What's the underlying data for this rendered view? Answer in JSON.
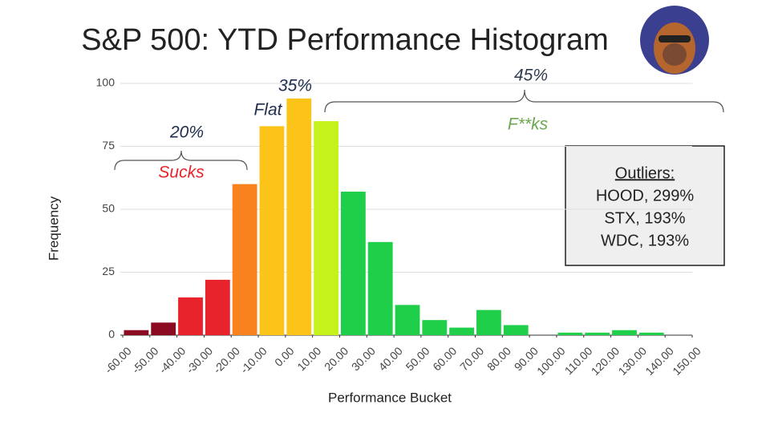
{
  "chart_data": {
    "type": "histogram",
    "title": "S&P 500: YTD Performance Histogram",
    "x_label": "Performance Bucket",
    "y_label": "Frequency",
    "bins": [
      -60,
      -50,
      -40,
      -30,
      -20,
      -10,
      0,
      10,
      20,
      30,
      40,
      50,
      60,
      70,
      80,
      90,
      100,
      110,
      120,
      130,
      140,
      150
    ],
    "values": [
      2,
      5,
      15,
      22,
      60,
      83,
      94,
      85,
      57,
      37,
      12,
      6,
      3,
      10,
      4,
      0,
      1,
      1,
      2,
      1,
      0
    ],
    "colors": [
      "#8b0a22",
      "#8b0a22",
      "#e8232b",
      "#e8232b",
      "#f7821e",
      "#fcc419",
      "#fcc419",
      "#c6f21b",
      "#1fcf4a",
      "#1fcf4a",
      "#1fcf4a",
      "#1fcf4a",
      "#1fcf4a",
      "#1fcf4a",
      "#1fcf4a",
      "#1fcf4a",
      "#1fcf4a",
      "#1fcf4a",
      "#1fcf4a",
      "#1fcf4a",
      "#1fcf4a"
    ],
    "xlim": [
      -60,
      150
    ],
    "xticks": [
      {
        "value": -60,
        "label": "-60.00"
      },
      {
        "value": -50,
        "label": "-50.00"
      },
      {
        "value": -40,
        "label": "-40.00"
      },
      {
        "value": -30,
        "label": "-30.00"
      },
      {
        "value": -20,
        "label": "-20.00"
      },
      {
        "value": -10,
        "label": "-10.00"
      },
      {
        "value": 0,
        "label": "0.00"
      },
      {
        "value": 10,
        "label": "10.00"
      },
      {
        "value": 20,
        "label": "20.00"
      },
      {
        "value": 30,
        "label": "30.00"
      },
      {
        "value": 40,
        "label": "40.00"
      },
      {
        "value": 50,
        "label": "50.00"
      },
      {
        "value": 60,
        "label": "60.00"
      },
      {
        "value": 70,
        "label": "70.00"
      },
      {
        "value": 80,
        "label": "80.00"
      },
      {
        "value": 90,
        "label": "90.00"
      },
      {
        "value": 100,
        "label": "100.00"
      },
      {
        "value": 110,
        "label": "110.00"
      },
      {
        "value": 120,
        "label": "120.00"
      },
      {
        "value": 130,
        "label": "130.00"
      },
      {
        "value": 140,
        "label": "140.00"
      },
      {
        "value": 150,
        "label": "150.00"
      }
    ],
    "ylim": [
      0,
      100
    ],
    "yticks": [
      0,
      25,
      50,
      75,
      100
    ],
    "grid": true,
    "annotations": [
      "20%",
      "Sucks",
      "35%",
      "Flat",
      "45%",
      "F**ks"
    ],
    "outliers_title": "Outliers:",
    "outliers": [
      "HOOD, 299%",
      "STX, 193%",
      "WDC, 193%"
    ]
  }
}
